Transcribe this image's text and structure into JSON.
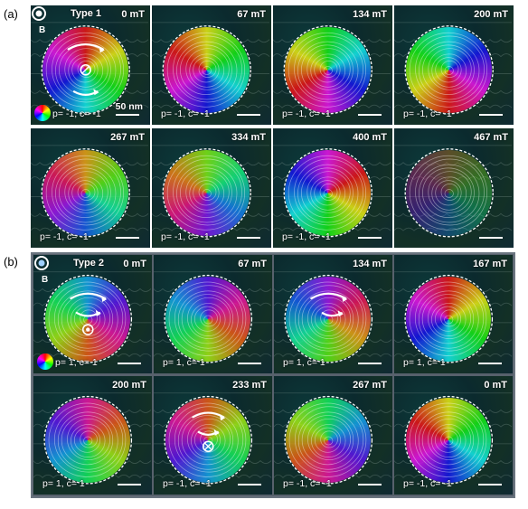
{
  "figure": {
    "section_a": {
      "label": "(a)",
      "type_label": "Type 1",
      "b_label": "B",
      "scale_label": "50 nm",
      "panels": [
        {
          "field": "0 mT",
          "pc": "p= -1, c= -1",
          "hue": 0,
          "fade": false
        },
        {
          "field": "67 mT",
          "pc": "p= -1, c= -1",
          "hue": 60,
          "fade": false
        },
        {
          "field": "134 mT",
          "pc": "p= -1, c= -1",
          "hue": 120,
          "fade": false
        },
        {
          "field": "200 mT",
          "pc": "p= -1, c= -1",
          "hue": 180,
          "fade": false
        },
        {
          "field": "267 mT",
          "pc": "p= -1, c= -1",
          "hue": 40,
          "fade": false
        },
        {
          "field": "334 mT",
          "pc": "p= -1, c= -1",
          "hue": 90,
          "fade": false
        },
        {
          "field": "400 mT",
          "pc": "p= -1, c= -1",
          "hue": 300,
          "fade": false
        },
        {
          "field": "467 mT",
          "pc": "",
          "hue": 30,
          "fade": true
        }
      ]
    },
    "section_b": {
      "label": "(b)",
      "type_label": "Type 2",
      "b_label": "B",
      "panels": [
        {
          "field": "0 mT",
          "pc": "p= 1, c= 1",
          "hue": 200
        },
        {
          "field": "67 mT",
          "pc": "p= 1, c= 1",
          "hue": 260
        },
        {
          "field": "134 mT",
          "pc": "p= 1, c= 1",
          "hue": 280
        },
        {
          "field": "167 mT",
          "pc": "p= 1, c= 1",
          "hue": 0
        },
        {
          "field": "200 mT",
          "pc": "p= 1, c= 1",
          "hue": 320
        },
        {
          "field": "233 mT",
          "pc": "p= -1, c= -1",
          "hue": 20
        },
        {
          "field": "267 mT",
          "pc": "p= -1, c= -1",
          "hue": 140
        },
        {
          "field": "0 mT",
          "pc": "p= -1, c= -1",
          "hue": 60
        }
      ]
    },
    "icons": {
      "b_field": "circle-b-icon",
      "color_wheel": "color-wheel-icon",
      "core_into": "circle-cross-icon",
      "core_out": "circle-dot-icon",
      "curl": "curved-arrow-icon"
    }
  }
}
